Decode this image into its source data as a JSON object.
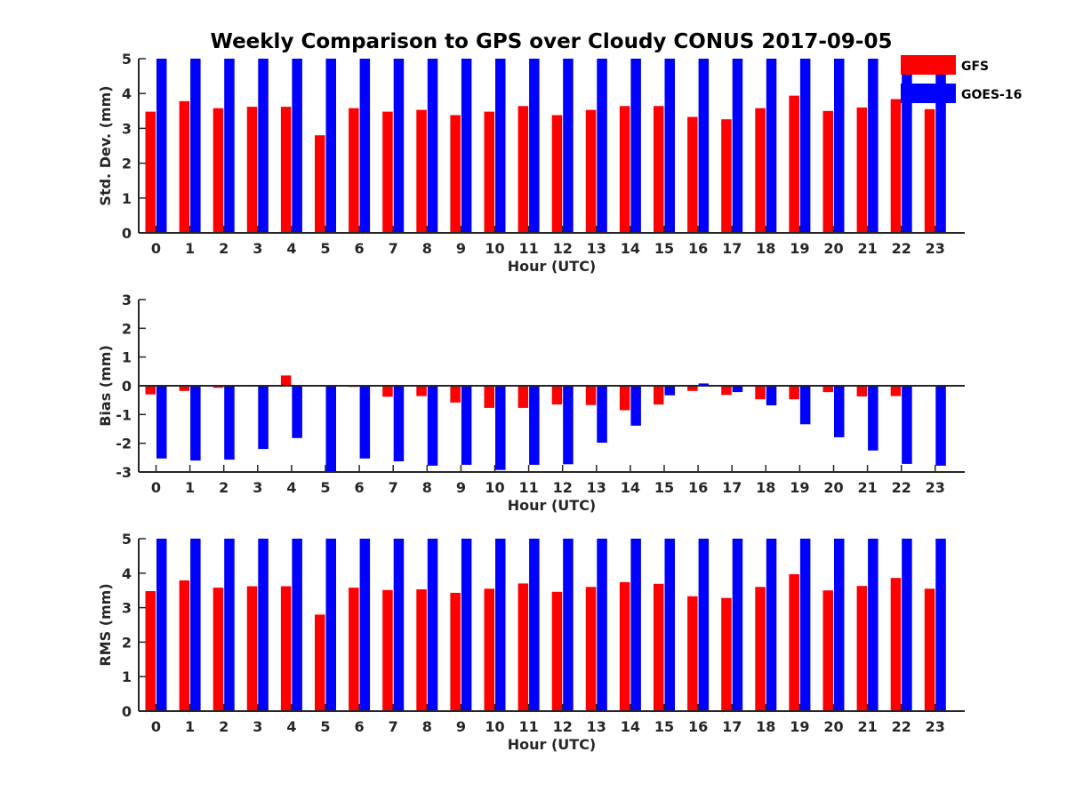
{
  "title": "Weekly Comparison to GPS over Cloudy CONUS 2017-09-05",
  "colors": {
    "GFS": "#ff0000",
    "GOES-16": "#0000ff",
    "axis": "#262626"
  },
  "legend": {
    "placement": "top-right",
    "entries": [
      "GFS",
      "GOES-16"
    ]
  },
  "chart_data": [
    {
      "type": "bar",
      "id": "stddev",
      "xlabel": "Hour (UTC)",
      "ylabel": "Std. Dev. (mm)",
      "ylim": [
        0,
        5
      ],
      "yticks": [
        0,
        1,
        2,
        3,
        4,
        5
      ],
      "categories": [
        "0",
        "1",
        "2",
        "3",
        "4",
        "5",
        "6",
        "7",
        "8",
        "9",
        "10",
        "11",
        "12",
        "13",
        "14",
        "15",
        "16",
        "17",
        "18",
        "19",
        "20",
        "21",
        "22",
        "23"
      ],
      "series": [
        {
          "name": "GFS",
          "values": [
            3.48,
            3.78,
            3.58,
            3.62,
            3.62,
            2.8,
            3.58,
            3.48,
            3.53,
            3.38,
            3.48,
            3.64,
            3.38,
            3.53,
            3.64,
            3.64,
            3.33,
            3.26,
            3.58,
            3.94,
            3.5,
            3.6,
            3.84,
            3.55
          ]
        },
        {
          "name": "GOES-16",
          "values": [
            5,
            5,
            5,
            5,
            5,
            5,
            5,
            5,
            5,
            5,
            5,
            5,
            5,
            5,
            5,
            5,
            5,
            5,
            5,
            5,
            5,
            5,
            5,
            5
          ]
        }
      ]
    },
    {
      "type": "bar",
      "id": "bias",
      "xlabel": "Hour (UTC)",
      "ylabel": "Bias (mm)",
      "ylim": [
        -3,
        3
      ],
      "yticks": [
        -3,
        -2,
        -1,
        0,
        1,
        2,
        3
      ],
      "categories": [
        "0",
        "1",
        "2",
        "3",
        "4",
        "5",
        "6",
        "7",
        "8",
        "9",
        "10",
        "11",
        "12",
        "13",
        "14",
        "15",
        "16",
        "17",
        "18",
        "19",
        "20",
        "21",
        "22",
        "23"
      ],
      "series": [
        {
          "name": "GFS",
          "values": [
            -0.3,
            -0.18,
            -0.07,
            0.02,
            0.36,
            0.0,
            -0.04,
            -0.38,
            -0.36,
            -0.58,
            -0.77,
            -0.77,
            -0.65,
            -0.67,
            -0.85,
            -0.65,
            -0.18,
            -0.32,
            -0.47,
            -0.47,
            -0.22,
            -0.37,
            -0.36,
            -0.02
          ]
        },
        {
          "name": "GOES-16",
          "values": [
            -2.53,
            -2.6,
            -2.57,
            -2.2,
            -1.82,
            -3.0,
            -2.53,
            -2.63,
            -2.78,
            -2.75,
            -2.93,
            -2.75,
            -2.73,
            -1.98,
            -1.39,
            -0.33,
            0.08,
            -0.22,
            -0.68,
            -1.34,
            -1.79,
            -2.25,
            -2.72,
            -2.78
          ]
        }
      ]
    },
    {
      "type": "bar",
      "id": "rms",
      "xlabel": "Hour (UTC)",
      "ylabel": "RMS (mm)",
      "ylim": [
        0,
        5
      ],
      "yticks": [
        0,
        1,
        2,
        3,
        4,
        5
      ],
      "categories": [
        "0",
        "1",
        "2",
        "3",
        "4",
        "5",
        "6",
        "7",
        "8",
        "9",
        "10",
        "11",
        "12",
        "13",
        "14",
        "15",
        "16",
        "17",
        "18",
        "19",
        "20",
        "21",
        "22",
        "23"
      ],
      "series": [
        {
          "name": "GFS",
          "values": [
            3.48,
            3.79,
            3.58,
            3.62,
            3.62,
            2.8,
            3.58,
            3.51,
            3.53,
            3.43,
            3.55,
            3.7,
            3.46,
            3.6,
            3.74,
            3.69,
            3.33,
            3.28,
            3.6,
            3.97,
            3.5,
            3.63,
            3.86,
            3.55
          ]
        },
        {
          "name": "GOES-16",
          "values": [
            5,
            5,
            5,
            5,
            5,
            5,
            5,
            5,
            5,
            5,
            5,
            5,
            5,
            5,
            5,
            5,
            5,
            5,
            5,
            5,
            5,
            5,
            5,
            5
          ]
        }
      ]
    }
  ]
}
